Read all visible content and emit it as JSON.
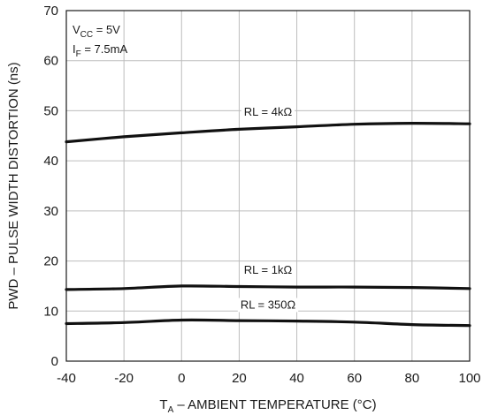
{
  "chart_data": {
    "type": "line",
    "title": "",
    "xlabel": {
      "main": "T",
      "sub": "A",
      "rest": " – AMBIENT TEMPERATURE (°C)"
    },
    "ylabel": "PWD – PULSE WIDTH DISTORTION (ns)",
    "xlim": [
      -40,
      100
    ],
    "ylim": [
      0,
      70
    ],
    "xticks": [
      -40,
      -20,
      0,
      20,
      40,
      60,
      80,
      100
    ],
    "yticks": [
      0,
      10,
      20,
      30,
      40,
      50,
      60,
      70
    ],
    "grid": true,
    "annotations": [
      {
        "main": "V",
        "sub": "CC",
        "rest": " = 5V"
      },
      {
        "main": "I",
        "sub": "F",
        "rest": " = 7.5mA"
      }
    ],
    "series": [
      {
        "name": "RL = 4kΩ",
        "x": [
          -40,
          -20,
          0,
          20,
          40,
          60,
          80,
          100
        ],
        "y": [
          43.8,
          44.8,
          45.6,
          46.3,
          46.8,
          47.3,
          47.5,
          47.4
        ],
        "label_x": 30,
        "label_y": 49
      },
      {
        "name": "RL = 1kΩ",
        "x": [
          -40,
          -20,
          0,
          20,
          40,
          60,
          80,
          100
        ],
        "y": [
          14.3,
          14.5,
          15.0,
          14.9,
          14.8,
          14.8,
          14.7,
          14.5
        ],
        "label_x": 30,
        "label_y": 17.5
      },
      {
        "name": "RL = 350Ω",
        "x": [
          -40,
          -20,
          0,
          20,
          40,
          60,
          80,
          100
        ],
        "y": [
          7.5,
          7.7,
          8.2,
          8.1,
          8.0,
          7.8,
          7.3,
          7.1
        ],
        "label_x": 30,
        "label_y": 10.5
      }
    ]
  }
}
